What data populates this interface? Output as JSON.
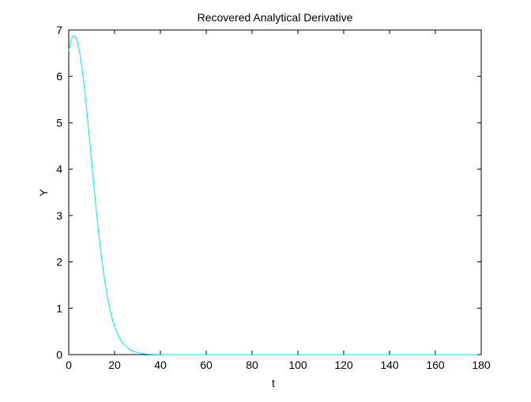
{
  "colors": {
    "background": "#ffffff",
    "axes": "#000000",
    "series": "#00e5ee"
  },
  "chart_data": {
    "type": "line",
    "title": "Recovered Analytical Derivative",
    "xlabel": "t",
    "ylabel": "Y",
    "xlim": [
      0,
      180
    ],
    "ylim": [
      0,
      7
    ],
    "xticks": [
      0,
      20,
      40,
      60,
      80,
      100,
      120,
      140,
      160,
      180
    ],
    "yticks": [
      0,
      1,
      2,
      3,
      4,
      5,
      6,
      7
    ],
    "grid": false,
    "legend": "none",
    "series": [
      {
        "color": "#00e5ee",
        "x": [
          0,
          1,
          2,
          3,
          4,
          5,
          6,
          7,
          8,
          9,
          10,
          11,
          12,
          13,
          14,
          15,
          16,
          17,
          18,
          19,
          20,
          22,
          24,
          26,
          28,
          30,
          32,
          34,
          36,
          38,
          40,
          42,
          44,
          46,
          48,
          50,
          55,
          60,
          70,
          80,
          90,
          100,
          110,
          120,
          130,
          140,
          150,
          160,
          170,
          180
        ],
        "y": [
          6.55,
          6.78,
          6.87,
          6.85,
          6.7,
          6.45,
          6.1,
          5.68,
          5.2,
          4.68,
          4.15,
          3.62,
          3.12,
          2.65,
          2.22,
          1.84,
          1.5,
          1.21,
          0.97,
          0.77,
          0.6,
          0.37,
          0.22,
          0.13,
          0.075,
          0.042,
          0.024,
          0.013,
          0.007,
          0.004,
          0.002,
          0.001,
          0.0006,
          0.0003,
          0.0002,
          0.0001,
          0,
          0,
          0,
          0,
          0,
          0,
          0,
          0,
          0,
          0,
          0,
          0,
          0,
          0
        ]
      }
    ]
  }
}
